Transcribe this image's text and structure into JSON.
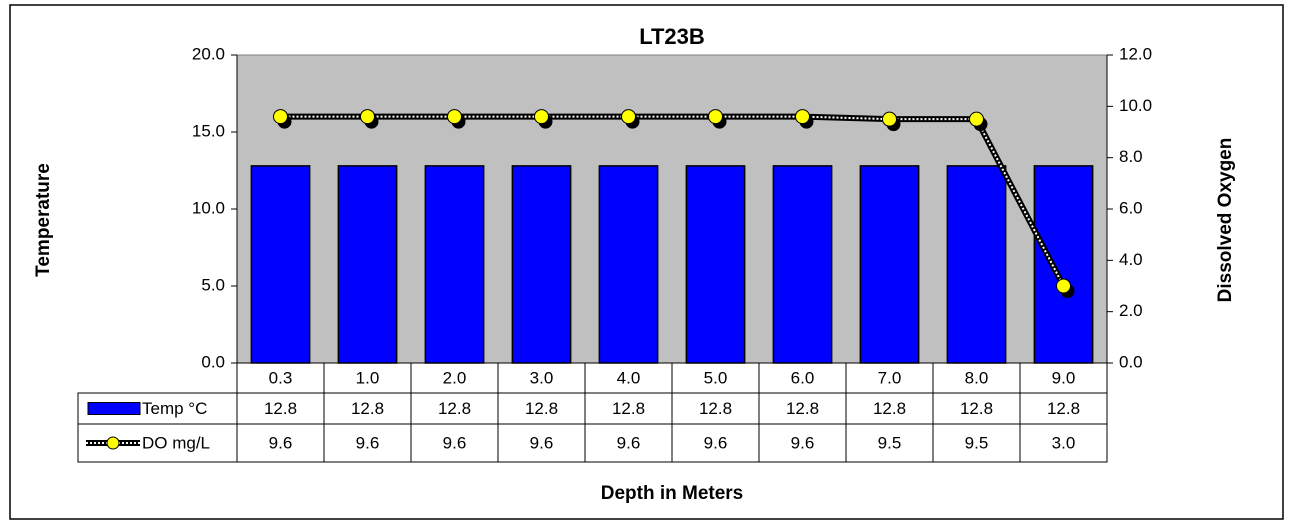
{
  "chart_data": {
    "type": "bar-line",
    "title": "LT23B",
    "categories": [
      "0.3",
      "1.0",
      "2.0",
      "3.0",
      "4.0",
      "5.0",
      "6.0",
      "7.0",
      "8.0",
      "9.0"
    ],
    "series": [
      {
        "name": "Temp °C",
        "color": "#0000ff",
        "values": [
          12.8,
          12.8,
          12.8,
          12.8,
          12.8,
          12.8,
          12.8,
          12.8,
          12.8,
          12.8
        ]
      },
      {
        "name": "DO mg/L",
        "color": "#ffff00",
        "axis": "y2",
        "values": [
          9.6,
          9.6,
          9.6,
          9.6,
          9.6,
          9.6,
          9.6,
          9.5,
          9.5,
          3.0
        ],
        "value_labels": [
          "9.6",
          "9.6",
          "9.6",
          "9.6",
          "9.6",
          "9.6",
          "9.6",
          "9.5",
          "9.5",
          "3.0"
        ]
      }
    ],
    "ylabel": "Temperature",
    "y2label": "Dissolved Oxygen",
    "xlabel": "Depth in Meters",
    "ylim": [
      0,
      20
    ],
    "yticks": [
      {
        "value": 0,
        "label": "0.0"
      },
      {
        "value": 5,
        "label": "5.0"
      },
      {
        "value": 10,
        "label": "10.0"
      },
      {
        "value": 15,
        "label": "15.0"
      },
      {
        "value": 20,
        "label": "20.0"
      }
    ],
    "y2lim": [
      0,
      12
    ],
    "y2ticks": [
      {
        "value": 0,
        "label": "0.0"
      },
      {
        "value": 2,
        "label": "2.0"
      },
      {
        "value": 4,
        "label": "4.0"
      },
      {
        "value": 6,
        "label": "6.0"
      },
      {
        "value": 8,
        "label": "8.0"
      },
      {
        "value": 10,
        "label": "10.0"
      },
      {
        "value": 12,
        "label": "12.0"
      }
    ],
    "plot_background": "#c0c0c0"
  }
}
